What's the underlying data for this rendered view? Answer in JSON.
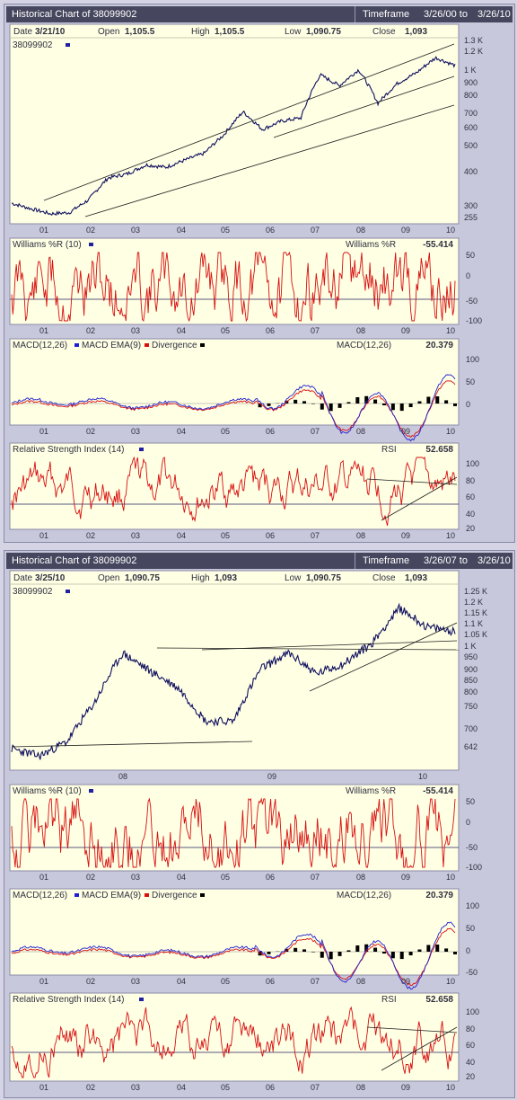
{
  "colors": {
    "plot_bg": "#ffffe4",
    "price_line": "#101060",
    "indicator_line": "#d81010",
    "macd_line": "#2020d0",
    "axis_text": "#303040",
    "border": "#8a8aa8"
  },
  "panels": [
    {
      "title": "Historical Chart of 38099902",
      "timeframe_label": "Timeframe",
      "tf_start": "3/26/00 to",
      "tf_end": "3/26/10",
      "header": {
        "date_label": "Date",
        "date": "3/21/10",
        "open_label": "Open",
        "open": "1,105.5",
        "high_label": "High",
        "high": "1,105.5",
        "low_label": "Low",
        "low": "1,090.75",
        "close_label": "Close",
        "close": "1,093",
        "symbol": "38099902"
      },
      "x_labels": [
        "01",
        "02",
        "03",
        "04",
        "05",
        "06",
        "07",
        "08",
        "09",
        "10"
      ],
      "y_labels": [
        "1.3 K",
        "1.2 K",
        "1 K",
        "900",
        "800",
        "700",
        "600",
        "500",
        "400",
        "300",
        "255"
      ],
      "williams": {
        "title": "Williams %R (10)",
        "value_label": "Williams %R",
        "value": "-55.414",
        "y_labels": [
          "50",
          "0",
          "-50",
          "-100"
        ]
      },
      "macd": {
        "title": "MACD(12,26)",
        "ema_label": "MACD EMA(9)",
        "div_label": "Divergence",
        "value_label": "MACD(12,26)",
        "value": "20.379",
        "y_labels": [
          "100",
          "50",
          "0"
        ]
      },
      "rsi": {
        "title": "Relative Strength Index (14)",
        "value_label": "RSI",
        "value": "52.658",
        "y_labels": [
          "100",
          "80",
          "60",
          "40",
          "20"
        ]
      }
    },
    {
      "title": "Historical Chart of 38099902",
      "timeframe_label": "Timeframe",
      "tf_start": "3/26/07 to",
      "tf_end": "3/26/10",
      "header": {
        "date_label": "Date",
        "date": "3/25/10",
        "open_label": "Open",
        "open": "1,090.75",
        "high_label": "High",
        "high": "1,093",
        "low_label": "Low",
        "low": "1,090.75",
        "close_label": "Close",
        "close": "1,093",
        "symbol": "38099902"
      },
      "x_labels": [
        "08",
        "09",
        "10"
      ],
      "y_labels": [
        "1.25 K",
        "1.2 K",
        "1.15 K",
        "1.1 K",
        "1.05 K",
        "1 K",
        "950",
        "900",
        "850",
        "800",
        "750",
        "700",
        "642"
      ],
      "williams": {
        "title": "Williams %R (10)",
        "value_label": "Williams %R",
        "value": "-55.414",
        "y_labels": [
          "50",
          "0",
          "-50",
          "-100"
        ]
      },
      "macd": {
        "title": "MACD(12,26)",
        "ema_label": "MACD EMA(9)",
        "div_label": "Divergence",
        "value_label": "MACD(12,26)",
        "value": "20.379",
        "y_labels": [
          "100",
          "50",
          "0",
          "-50"
        ]
      },
      "rsi": {
        "title": "Relative Strength Index (14)",
        "value_label": "RSI",
        "value": "52.658",
        "y_labels": [
          "100",
          "80",
          "60",
          "40",
          "20"
        ]
      },
      "x_labels_lower": [
        "01",
        "02",
        "03",
        "04",
        "05",
        "06",
        "07",
        "08",
        "09",
        "10"
      ]
    }
  ],
  "chart_data": [
    {
      "type": "line",
      "title": "Historical Chart of 38099902",
      "series": [
        {
          "name": "38099902",
          "x": [
            "2000-03",
            "2000-12",
            "2001-06",
            "2002-01",
            "2002-09",
            "2003-03",
            "2003-09",
            "2004-03",
            "2004-09",
            "2005-03",
            "2005-09",
            "2006-03",
            "2006-05",
            "2006-08",
            "2007-03",
            "2007-09",
            "2008-02",
            "2008-05",
            "2008-09",
            "2009-01",
            "2009-03",
            "2009-09",
            "2010-01",
            "2010-03"
          ],
          "y": [
            290,
            280,
            268,
            262,
            300,
            370,
            390,
            420,
            410,
            430,
            450,
            520,
            700,
            580,
            620,
            650,
            990,
            900,
            1050,
            800,
            900,
            1000,
            1200,
            1093
          ]
        }
      ],
      "ylim": [
        255,
        1300
      ],
      "scale": "log"
    },
    {
      "type": "line",
      "title": "Williams %R (10)",
      "series": [
        {
          "name": "Williams %R",
          "y": [
            -55.414
          ]
        }
      ],
      "ylim": [
        -100,
        50
      ]
    },
    {
      "type": "line",
      "title": "MACD(12,26)",
      "series": [
        {
          "name": "MACD(12,26)",
          "y": [
            20.379
          ]
        },
        {
          "name": "MACD EMA(9)"
        },
        {
          "name": "Divergence"
        }
      ],
      "ylim": [
        -20,
        100
      ]
    },
    {
      "type": "line",
      "title": "Relative Strength Index (14)",
      "series": [
        {
          "name": "RSI",
          "y": [
            52.658
          ]
        }
      ],
      "ylim": [
        20,
        100
      ]
    },
    {
      "type": "line",
      "title": "Historical Chart of 38099902",
      "series": [
        {
          "name": "38099902",
          "x": [
            "2007-03",
            "2007-06",
            "2007-09",
            "2008-01",
            "2008-03",
            "2008-05",
            "2008-07",
            "2008-09",
            "2008-11",
            "2009-01",
            "2009-03",
            "2009-06",
            "2009-09",
            "2009-12",
            "2010-01",
            "2010-03"
          ],
          "y": [
            690,
            670,
            760,
            880,
            1020,
            980,
            800,
            720,
            900,
            1010,
            950,
            980,
            1100,
            1240,
            1130,
            1093
          ]
        }
      ],
      "ylim": [
        642,
        1270
      ]
    }
  ]
}
